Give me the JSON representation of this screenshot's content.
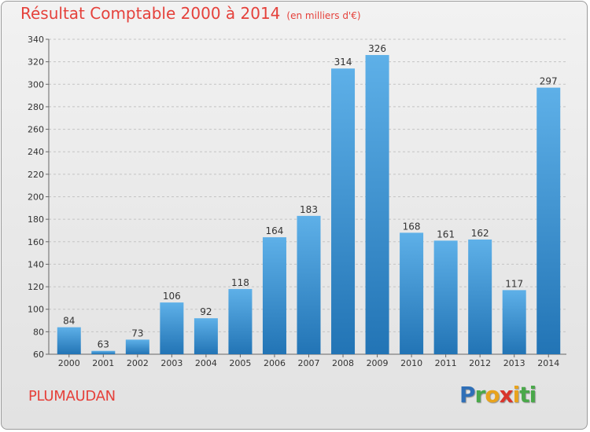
{
  "header": {
    "title": "Résultat Comptable 2000 à 2014",
    "subtitle": "(en milliers d'€)"
  },
  "footer": {
    "city": "PLUMAUDAN",
    "logo_letters": [
      "P",
      "r",
      "o",
      "x",
      "i",
      "t",
      "i"
    ]
  },
  "colors": {
    "title": "#e5413b",
    "bar_top": "#5eb0e8",
    "bar_bottom": "#2274b5",
    "logo": [
      "#2f6fb7",
      "#4aa84a",
      "#e8a31d",
      "#d9342b",
      "#e8a31d",
      "#4aa84a",
      "#4aa84a"
    ]
  },
  "chart_data": {
    "type": "bar",
    "title": "Résultat Comptable 2000 à 2014",
    "subtitle": "(en milliers d'€)",
    "xlabel": "",
    "ylabel": "",
    "categories": [
      "2000",
      "2001",
      "2002",
      "2003",
      "2004",
      "2005",
      "2006",
      "2007",
      "2008",
      "2009",
      "2010",
      "2011",
      "2012",
      "2013",
      "2014"
    ],
    "values": [
      84,
      63,
      73,
      106,
      92,
      118,
      164,
      183,
      314,
      326,
      168,
      161,
      162,
      117,
      297
    ],
    "ylim": [
      60,
      340
    ],
    "yticks": [
      60,
      80,
      100,
      120,
      140,
      160,
      180,
      200,
      220,
      240,
      260,
      280,
      300,
      320,
      340
    ],
    "grid": "horizontal-dashed"
  }
}
